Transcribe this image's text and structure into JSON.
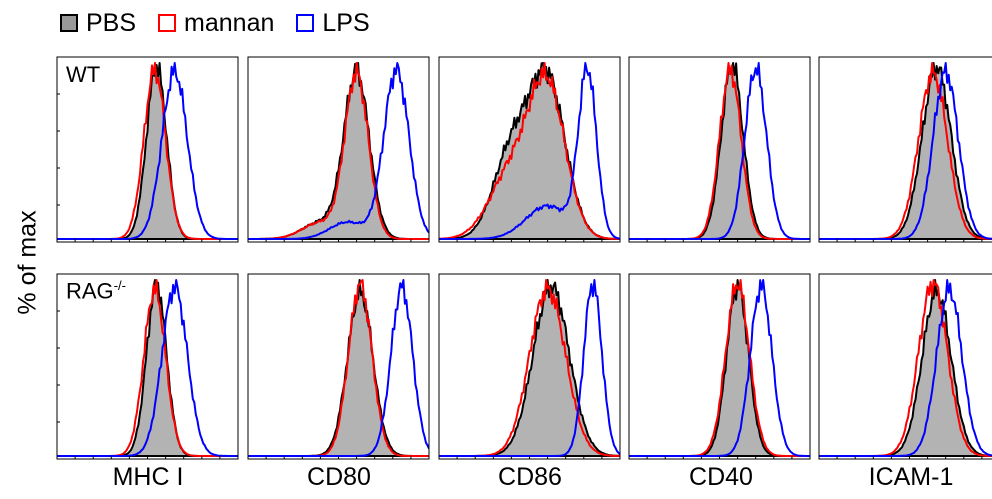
{
  "legend": [
    {
      "label": "PBS",
      "fill": "#999999",
      "stroke": "#000000"
    },
    {
      "label": "mannan",
      "fill": "none",
      "stroke": "#ff0000"
    },
    {
      "label": "LPS",
      "fill": "none",
      "stroke": "#0000ff"
    }
  ],
  "ylabel": "% of max",
  "rows": [
    {
      "label": "WT",
      "superscript": ""
    },
    {
      "label": "RAG",
      "superscript": "-/-"
    }
  ],
  "columns": [
    "MHC I",
    "CD80",
    "CD86",
    "CD40",
    "ICAM-1"
  ],
  "chart_data": {
    "type": "area",
    "title": "",
    "xlabel": "",
    "ylabel": "% of max",
    "xlim": [
      0,
      1
    ],
    "ylim": [
      0,
      100
    ],
    "grid": false,
    "legend_position": "top-left",
    "panels": [
      {
        "row": "WT",
        "marker": "MHC I",
        "series": [
          {
            "name": "PBS",
            "peaks": [
              [
                0.55,
                100,
                0.055
              ]
            ]
          },
          {
            "name": "mannan",
            "peaks": [
              [
                0.54,
                100,
                0.06
              ]
            ]
          },
          {
            "name": "LPS",
            "peaks": [
              [
                0.65,
                100,
                0.07
              ]
            ]
          }
        ]
      },
      {
        "row": "WT",
        "marker": "CD80",
        "series": [
          {
            "name": "PBS",
            "peaks": [
              [
                0.6,
                100,
                0.07
              ],
              [
                0.4,
                10,
                0.1
              ]
            ]
          },
          {
            "name": "mannan",
            "peaks": [
              [
                0.6,
                100,
                0.065
              ],
              [
                0.4,
                10,
                0.1
              ]
            ]
          },
          {
            "name": "LPS",
            "peaks": [
              [
                0.82,
                100,
                0.07
              ],
              [
                0.55,
                10,
                0.1
              ]
            ]
          }
        ]
      },
      {
        "row": "WT",
        "marker": "CD86",
        "series": [
          {
            "name": "PBS",
            "peaks": [
              [
                0.6,
                100,
                0.1
              ],
              [
                0.4,
                55,
                0.1
              ]
            ]
          },
          {
            "name": "mannan",
            "peaks": [
              [
                0.6,
                100,
                0.1
              ],
              [
                0.4,
                45,
                0.12
              ]
            ]
          },
          {
            "name": "LPS",
            "peaks": [
              [
                0.82,
                100,
                0.05
              ],
              [
                0.6,
                20,
                0.12
              ]
            ]
          }
        ]
      },
      {
        "row": "WT",
        "marker": "CD40",
        "series": [
          {
            "name": "PBS",
            "peaks": [
              [
                0.57,
                100,
                0.06
              ]
            ]
          },
          {
            "name": "mannan",
            "peaks": [
              [
                0.56,
                100,
                0.06
              ]
            ]
          },
          {
            "name": "LPS",
            "peaks": [
              [
                0.7,
                100,
                0.06
              ]
            ]
          }
        ]
      },
      {
        "row": "WT",
        "marker": "ICAM-1",
        "series": [
          {
            "name": "PBS",
            "peaks": [
              [
                0.65,
                100,
                0.08
              ]
            ]
          },
          {
            "name": "mannan",
            "peaks": [
              [
                0.63,
                100,
                0.08
              ]
            ]
          },
          {
            "name": "LPS",
            "peaks": [
              [
                0.7,
                90,
                0.07
              ]
            ]
          }
        ]
      },
      {
        "row": "RAG-/-",
        "marker": "MHC I",
        "series": [
          {
            "name": "PBS",
            "peaks": [
              [
                0.55,
                100,
                0.055
              ]
            ]
          },
          {
            "name": "mannan",
            "peaks": [
              [
                0.54,
                100,
                0.06
              ]
            ]
          },
          {
            "name": "LPS",
            "peaks": [
              [
                0.65,
                100,
                0.07
              ]
            ]
          }
        ]
      },
      {
        "row": "RAG-/-",
        "marker": "CD80",
        "series": [
          {
            "name": "PBS",
            "peaks": [
              [
                0.62,
                100,
                0.07
              ]
            ]
          },
          {
            "name": "mannan",
            "peaks": [
              [
                0.62,
                100,
                0.065
              ]
            ]
          },
          {
            "name": "LPS",
            "peaks": [
              [
                0.85,
                100,
                0.06
              ]
            ]
          }
        ]
      },
      {
        "row": "RAG-/-",
        "marker": "CD86",
        "series": [
          {
            "name": "PBS",
            "peaks": [
              [
                0.62,
                100,
                0.1
              ]
            ]
          },
          {
            "name": "mannan",
            "peaks": [
              [
                0.6,
                100,
                0.1
              ]
            ]
          },
          {
            "name": "LPS",
            "peaks": [
              [
                0.85,
                100,
                0.05
              ]
            ]
          }
        ]
      },
      {
        "row": "RAG-/-",
        "marker": "CD40",
        "series": [
          {
            "name": "PBS",
            "peaks": [
              [
                0.6,
                100,
                0.06
              ]
            ]
          },
          {
            "name": "mannan",
            "peaks": [
              [
                0.6,
                100,
                0.065
              ]
            ]
          },
          {
            "name": "LPS",
            "peaks": [
              [
                0.73,
                100,
                0.06
              ]
            ]
          }
        ]
      },
      {
        "row": "RAG-/-",
        "marker": "ICAM-1",
        "series": [
          {
            "name": "PBS",
            "peaks": [
              [
                0.65,
                100,
                0.08
              ]
            ]
          },
          {
            "name": "mannan",
            "peaks": [
              [
                0.63,
                100,
                0.08
              ]
            ]
          },
          {
            "name": "LPS",
            "peaks": [
              [
                0.72,
                100,
                0.07
              ]
            ]
          }
        ]
      }
    ]
  }
}
